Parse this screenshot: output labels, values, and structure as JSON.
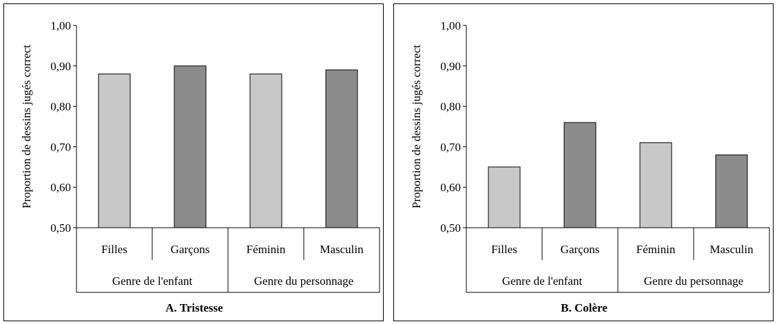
{
  "chart_data": [
    {
      "type": "bar",
      "title": "A. Tristesse",
      "ylabel": "Proportion de dessins jugés correct",
      "ylim": [
        0.5,
        1.0
      ],
      "yticks": [
        "0,50",
        "0,60",
        "0,70",
        "0,80",
        "0,90",
        "1,00"
      ],
      "categories": [
        "Filles",
        "Garçons",
        "Féminin",
        "Masculin"
      ],
      "groups": [
        "Genre de l'enfant",
        "Genre du personnage"
      ],
      "values": [
        0.88,
        0.9,
        0.88,
        0.89
      ],
      "colors": [
        "#c8c8c8",
        "#8c8c8c",
        "#c8c8c8",
        "#8c8c8c"
      ]
    },
    {
      "type": "bar",
      "title": "B. Colère",
      "ylabel": "Proportion de dessins jugés correct",
      "ylim": [
        0.5,
        1.0
      ],
      "yticks": [
        "0,50",
        "0,60",
        "0,70",
        "0,80",
        "0,90",
        "1,00"
      ],
      "categories": [
        "Filles",
        "Garçons",
        "Féminin",
        "Masculin"
      ],
      "groups": [
        "Genre de l'enfant",
        "Genre du personnage"
      ],
      "values": [
        0.65,
        0.76,
        0.71,
        0.68
      ],
      "colors": [
        "#c8c8c8",
        "#8c8c8c",
        "#c8c8c8",
        "#8c8c8c"
      ]
    }
  ]
}
